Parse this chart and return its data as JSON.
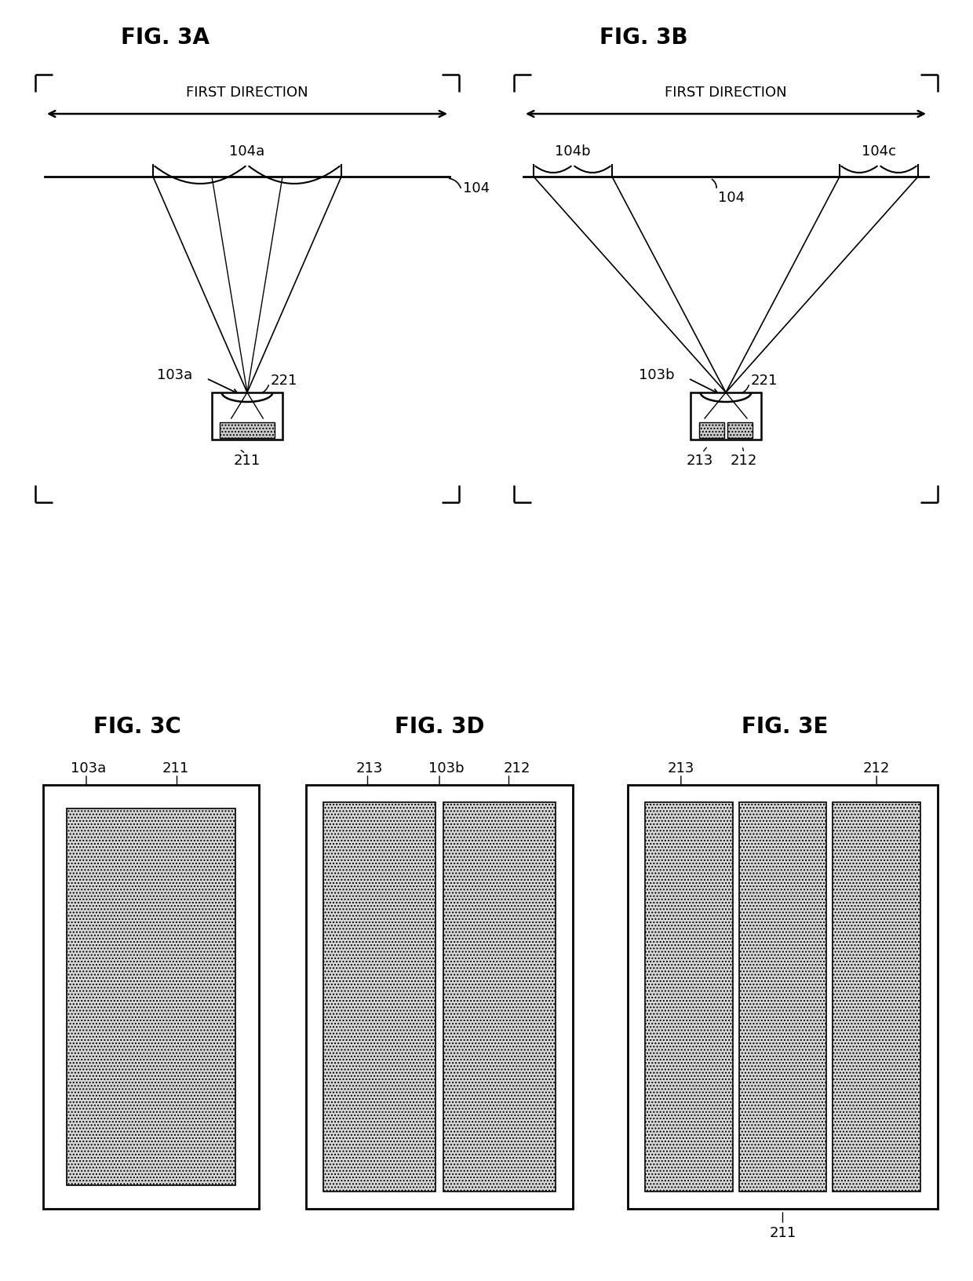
{
  "bg_color": "#ffffff",
  "lc": "#000000",
  "fig3a_title": "FIG. 3A",
  "fig3b_title": "FIG. 3B",
  "fig3c_title": "FIG. 3C",
  "fig3d_title": "FIG. 3D",
  "fig3e_title": "FIG. 3E",
  "first_direction": "FIRST DIRECTION",
  "label_104a": "104a",
  "label_104b": "104b",
  "label_104c": "104c",
  "label_104": "104",
  "label_103a": "103a",
  "label_103b": "103b",
  "label_221": "221",
  "label_211": "211",
  "label_213": "213",
  "label_212": "212",
  "title_fontsize": 20,
  "label_fontsize": 13,
  "arrow_fontsize": 13
}
